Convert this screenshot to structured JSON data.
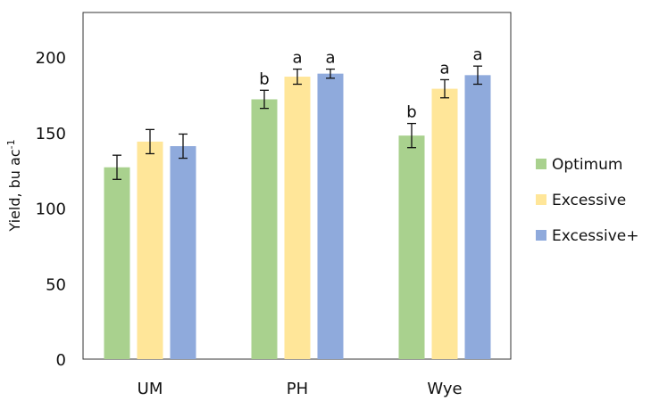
{
  "chart_data": {
    "type": "bar",
    "title": "",
    "xlabel": "",
    "ylabel": "Yield, bu ac",
    "ylabel_superscript": "-1",
    "ylim": [
      0,
      230
    ],
    "yticks": [
      0,
      50,
      100,
      150,
      200
    ],
    "grid": false,
    "legend_position": "right",
    "categories": [
      "UM",
      "PH",
      "Wye"
    ],
    "series": [
      {
        "name": "Optimum",
        "color": "#a9d18e",
        "values": [
          127,
          172,
          148
        ],
        "errors": [
          8,
          6,
          8
        ],
        "letters": [
          "",
          "b",
          "b"
        ]
      },
      {
        "name": "Excessive",
        "color": "#ffe699",
        "values": [
          144,
          187,
          179
        ],
        "errors": [
          8,
          5,
          6
        ],
        "letters": [
          "",
          "a",
          "a"
        ]
      },
      {
        "name": "Excessive+",
        "color": "#8faadc",
        "values": [
          141,
          189,
          188
        ],
        "errors": [
          8,
          3,
          6
        ],
        "letters": [
          "",
          "a",
          "a"
        ]
      }
    ]
  }
}
